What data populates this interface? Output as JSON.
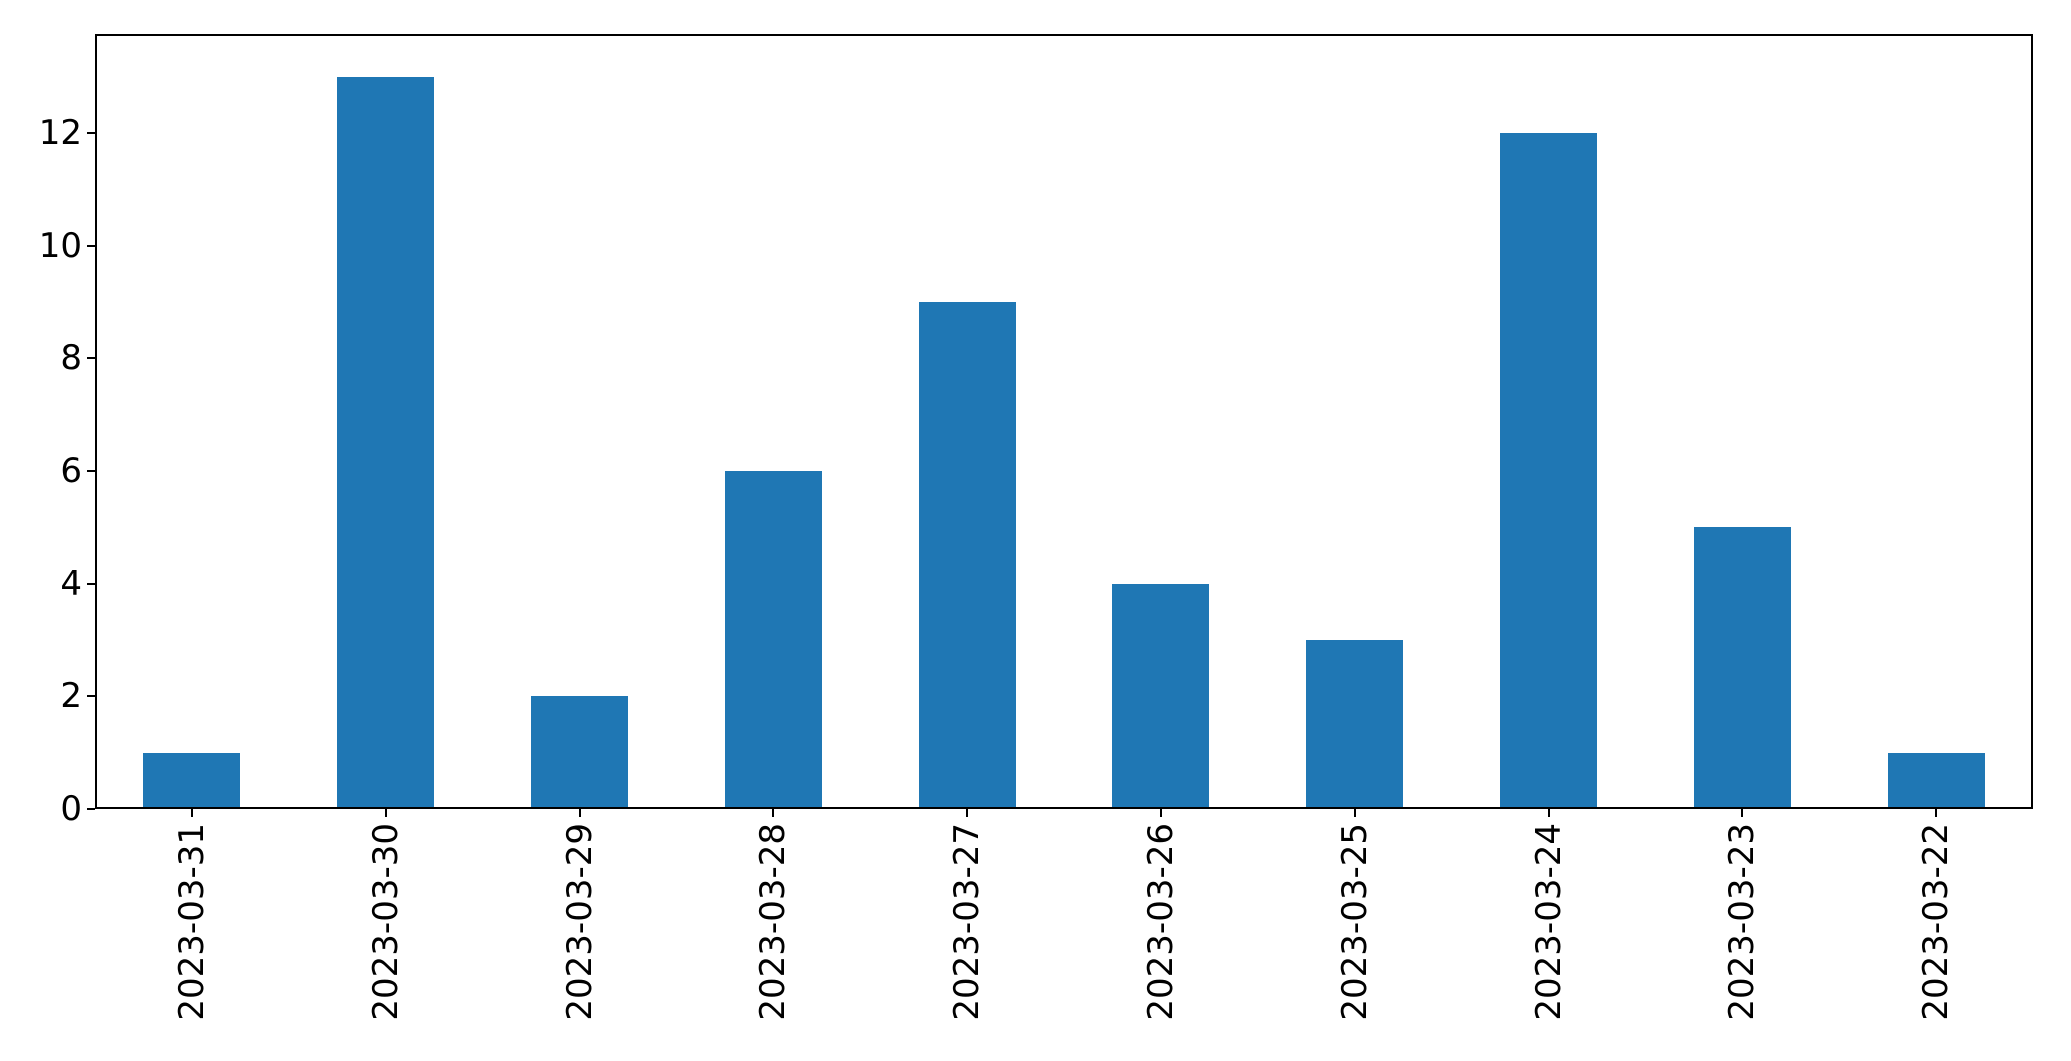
{
  "figure": {
    "background": "#ffffff",
    "frame_color": "#000000",
    "text_color": "#000000"
  },
  "chart_data": {
    "type": "bar",
    "title": "",
    "xlabel": "",
    "ylabel": "",
    "categories": [
      "2023-03-31",
      "2023-03-30",
      "2023-03-29",
      "2023-03-28",
      "2023-03-27",
      "2023-03-26",
      "2023-03-25",
      "2023-03-24",
      "2023-03-23",
      "2023-03-22"
    ],
    "values": [
      1,
      13,
      2,
      6,
      9,
      4,
      3,
      12,
      5,
      1
    ],
    "bar_color": "#1f77b4",
    "ylim": [
      0,
      13.76
    ],
    "yticks": [
      0,
      2,
      4,
      6,
      8,
      10,
      12
    ],
    "x_tick_rotation_deg": 90,
    "grid": false,
    "legend_position": "none"
  }
}
